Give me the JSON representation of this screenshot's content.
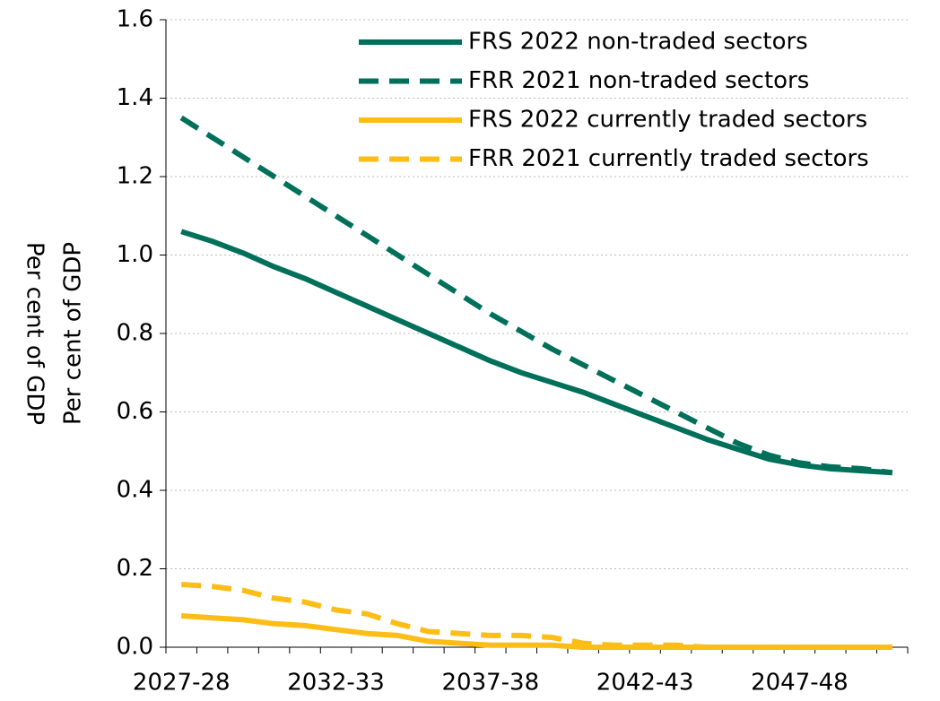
{
  "chart_data": {
    "type": "line",
    "ylabel": "Per cent of GDP",
    "categories": [
      "2027-28",
      null,
      null,
      null,
      null,
      "2032-33",
      null,
      null,
      null,
      null,
      "2037-38",
      null,
      null,
      null,
      null,
      "2042-43",
      null,
      null,
      null,
      null,
      "2047-48",
      null,
      null,
      null
    ],
    "series": [
      {
        "name": "FRS 2022 non-traded sectors",
        "color": "#00705a",
        "dashed": false,
        "values": [
          1.06,
          1.035,
          1.005,
          0.97,
          0.94,
          0.905,
          0.87,
          0.835,
          0.8,
          0.765,
          0.73,
          0.7,
          0.675,
          0.65,
          0.62,
          0.59,
          0.56,
          0.53,
          0.505,
          0.48,
          0.465,
          0.455,
          0.45,
          0.445
        ]
      },
      {
        "name": "FRR 2021 non-traded sectors",
        "color": "#00705a",
        "dashed": true,
        "values": [
          1.35,
          1.3,
          1.25,
          1.2,
          1.15,
          1.1,
          1.05,
          1.0,
          0.95,
          0.9,
          0.85,
          0.805,
          0.76,
          0.72,
          0.68,
          0.64,
          0.6,
          0.56,
          0.52,
          0.49,
          0.47,
          0.46,
          0.455,
          0.445
        ]
      },
      {
        "name": "FRS 2022 currently traded sectors",
        "color": "#fcbd17",
        "dashed": false,
        "values": [
          0.08,
          0.075,
          0.07,
          0.06,
          0.055,
          0.045,
          0.035,
          0.03,
          0.015,
          0.01,
          0.005,
          0.005,
          0.005,
          0,
          0,
          0,
          0,
          0,
          0,
          0,
          0,
          0,
          0,
          0
        ]
      },
      {
        "name": "FRR 2021 currently traded sectors",
        "color": "#fcbd17",
        "dashed": true,
        "values": [
          0.16,
          0.155,
          0.145,
          0.125,
          0.115,
          0.095,
          0.085,
          0.06,
          0.04,
          0.035,
          0.03,
          0.03,
          0.025,
          0.01,
          0.005,
          0.005,
          0.005,
          0,
          0,
          0,
          0,
          0,
          0,
          0
        ]
      }
    ],
    "ylim": [
      0,
      1.6
    ],
    "yticks": [
      {
        "value": 0,
        "label": "0.0"
      },
      0.2,
      0.4,
      0.6,
      0.8,
      {
        "value": 1,
        "label": "1.0"
      },
      1.2,
      1.4,
      1.6
    ],
    "grid": true,
    "legend": "top-right"
  }
}
